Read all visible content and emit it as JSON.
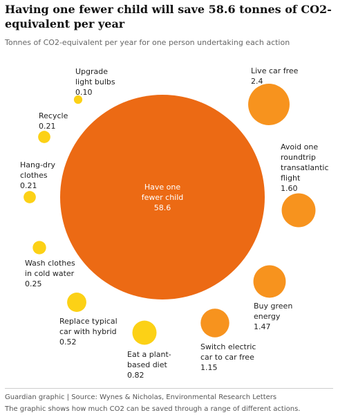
{
  "chart_data": {
    "type": "bubble",
    "title": "Having one fewer child will save 58.6 tonnes of CO2-equivalent per year",
    "subtitle": "Tonnes of CO2-equivalent per year for one person undertaking each action",
    "categories": [
      "Have one fewer child",
      "Live car free",
      "Avoid one roundtrip transatlantic flight",
      "Buy green energy",
      "Switch electric car to car free",
      "Eat a plant-based diet",
      "Replace typical car with hybrid",
      "Wash clothes in cold water",
      "Hang-dry clothes",
      "Recycle",
      "Upgrade light bulbs"
    ],
    "values": [
      58.6,
      2.4,
      1.6,
      1.47,
      1.15,
      0.82,
      0.52,
      0.25,
      0.21,
      0.21,
      0.1
    ],
    "value_labels": [
      "58.6",
      "2.4",
      "1.60",
      "1.47",
      "1.15",
      "0.82",
      "0.52",
      "0.25",
      "0.21",
      "0.21",
      "0.10"
    ],
    "colors": [
      "#ec6a14",
      "#f7931e",
      "#f7931e",
      "#f7931e",
      "#f7931e",
      "#fcd116",
      "#fcd116",
      "#fcd116",
      "#fcd116",
      "#fcd116",
      "#fcd116"
    ],
    "source": "Guardian graphic | Source: Wynes & Nicholas, Environmental Research Letters",
    "note": "The graphic shows how much CO2 can be saved through a range of different actions."
  }
}
